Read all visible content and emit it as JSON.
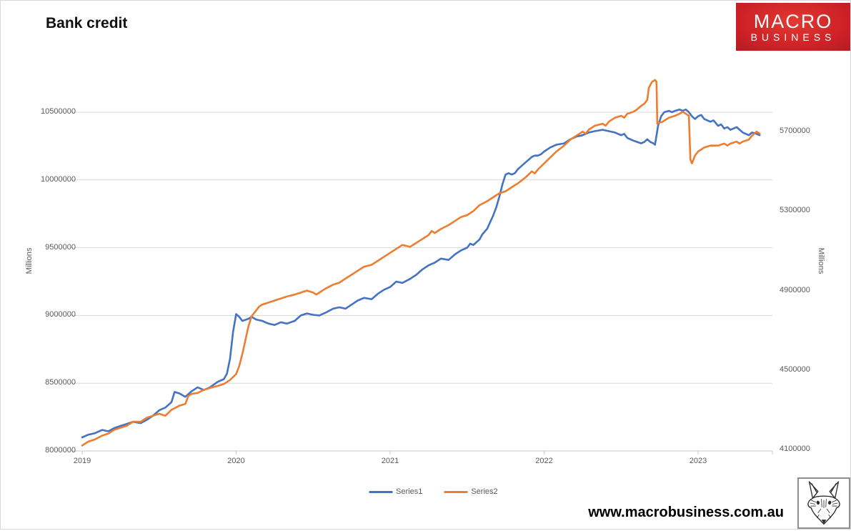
{
  "title": "Bank credit",
  "logo": {
    "line1": "MACRO",
    "line2": "BUSINESS",
    "bg_color": "#cd2127"
  },
  "footer": {
    "website": "www.macrobusiness.com.au"
  },
  "chart_data": {
    "type": "line",
    "title": "Bank credit",
    "grid": true,
    "legend_position": "bottom",
    "x_axis": {
      "tick_labels": [
        "2019",
        "2020",
        "2021",
        "2022",
        "2023"
      ]
    },
    "left_axis": {
      "label": "Millions",
      "min": 8000000,
      "max": 10500000,
      "ticks": [
        8000000,
        8500000,
        9000000,
        9500000,
        10000000,
        10500000
      ]
    },
    "right_axis": {
      "label": "Millions",
      "min": 4100000,
      "max": 5700000,
      "ticks": [
        4100000,
        4500000,
        4900000,
        5300000,
        5700000
      ]
    },
    "legend": [
      {
        "label": "Series1",
        "color": "#4472C4"
      },
      {
        "label": "Series2",
        "color": "#ED7D31"
      }
    ],
    "series": [
      {
        "name": "Series1",
        "axis": "left",
        "color": "#4472C4",
        "points": [
          [
            2019.0,
            8100000
          ],
          [
            2019.04,
            8120000
          ],
          [
            2019.08,
            8130000
          ],
          [
            2019.13,
            8155000
          ],
          [
            2019.17,
            8145000
          ],
          [
            2019.21,
            8170000
          ],
          [
            2019.25,
            8185000
          ],
          [
            2019.29,
            8200000
          ],
          [
            2019.33,
            8215000
          ],
          [
            2019.38,
            8205000
          ],
          [
            2019.42,
            8230000
          ],
          [
            2019.46,
            8260000
          ],
          [
            2019.5,
            8300000
          ],
          [
            2019.54,
            8320000
          ],
          [
            2019.58,
            8360000
          ],
          [
            2019.6,
            8435000
          ],
          [
            2019.63,
            8425000
          ],
          [
            2019.67,
            8400000
          ],
          [
            2019.71,
            8440000
          ],
          [
            2019.75,
            8470000
          ],
          [
            2019.79,
            8450000
          ],
          [
            2019.83,
            8470000
          ],
          [
            2019.88,
            8510000
          ],
          [
            2019.92,
            8530000
          ],
          [
            2019.94,
            8570000
          ],
          [
            2019.96,
            8680000
          ],
          [
            2019.98,
            8880000
          ],
          [
            2020.0,
            9010000
          ],
          [
            2020.02,
            8990000
          ],
          [
            2020.04,
            8960000
          ],
          [
            2020.08,
            8975000
          ],
          [
            2020.1,
            8990000
          ],
          [
            2020.13,
            8970000
          ],
          [
            2020.17,
            8960000
          ],
          [
            2020.21,
            8940000
          ],
          [
            2020.25,
            8930000
          ],
          [
            2020.29,
            8950000
          ],
          [
            2020.33,
            8940000
          ],
          [
            2020.38,
            8960000
          ],
          [
            2020.42,
            9000000
          ],
          [
            2020.46,
            9015000
          ],
          [
            2020.5,
            9005000
          ],
          [
            2020.54,
            9000000
          ],
          [
            2020.58,
            9020000
          ],
          [
            2020.63,
            9050000
          ],
          [
            2020.67,
            9060000
          ],
          [
            2020.71,
            9050000
          ],
          [
            2020.75,
            9080000
          ],
          [
            2020.79,
            9110000
          ],
          [
            2020.83,
            9130000
          ],
          [
            2020.88,
            9120000
          ],
          [
            2020.92,
            9160000
          ],
          [
            2020.96,
            9190000
          ],
          [
            2021.0,
            9210000
          ],
          [
            2021.04,
            9250000
          ],
          [
            2021.08,
            9240000
          ],
          [
            2021.13,
            9270000
          ],
          [
            2021.17,
            9300000
          ],
          [
            2021.21,
            9340000
          ],
          [
            2021.25,
            9370000
          ],
          [
            2021.29,
            9390000
          ],
          [
            2021.33,
            9420000
          ],
          [
            2021.38,
            9410000
          ],
          [
            2021.42,
            9450000
          ],
          [
            2021.46,
            9480000
          ],
          [
            2021.5,
            9500000
          ],
          [
            2021.52,
            9530000
          ],
          [
            2021.54,
            9520000
          ],
          [
            2021.58,
            9560000
          ],
          [
            2021.6,
            9600000
          ],
          [
            2021.63,
            9640000
          ],
          [
            2021.65,
            9690000
          ],
          [
            2021.67,
            9740000
          ],
          [
            2021.69,
            9800000
          ],
          [
            2021.71,
            9880000
          ],
          [
            2021.73,
            9970000
          ],
          [
            2021.75,
            10040000
          ],
          [
            2021.77,
            10050000
          ],
          [
            2021.79,
            10040000
          ],
          [
            2021.81,
            10050000
          ],
          [
            2021.83,
            10080000
          ],
          [
            2021.85,
            10100000
          ],
          [
            2021.88,
            10130000
          ],
          [
            2021.9,
            10150000
          ],
          [
            2021.92,
            10170000
          ],
          [
            2021.94,
            10180000
          ],
          [
            2021.96,
            10180000
          ],
          [
            2021.98,
            10190000
          ],
          [
            2022.0,
            10210000
          ],
          [
            2022.04,
            10240000
          ],
          [
            2022.08,
            10260000
          ],
          [
            2022.13,
            10270000
          ],
          [
            2022.17,
            10300000
          ],
          [
            2022.21,
            10320000
          ],
          [
            2022.25,
            10330000
          ],
          [
            2022.29,
            10350000
          ],
          [
            2022.33,
            10360000
          ],
          [
            2022.38,
            10370000
          ],
          [
            2022.42,
            10360000
          ],
          [
            2022.46,
            10350000
          ],
          [
            2022.5,
            10330000
          ],
          [
            2022.52,
            10340000
          ],
          [
            2022.54,
            10310000
          ],
          [
            2022.58,
            10290000
          ],
          [
            2022.63,
            10270000
          ],
          [
            2022.65,
            10280000
          ],
          [
            2022.67,
            10300000
          ],
          [
            2022.69,
            10280000
          ],
          [
            2022.71,
            10270000
          ],
          [
            2022.72,
            10260000
          ],
          [
            2022.74,
            10400000
          ],
          [
            2022.76,
            10470000
          ],
          [
            2022.78,
            10500000
          ],
          [
            2022.81,
            10510000
          ],
          [
            2022.83,
            10500000
          ],
          [
            2022.85,
            10510000
          ],
          [
            2022.88,
            10520000
          ],
          [
            2022.9,
            10510000
          ],
          [
            2022.92,
            10520000
          ],
          [
            2022.94,
            10500000
          ],
          [
            2022.96,
            10470000
          ],
          [
            2022.98,
            10450000
          ],
          [
            2023.0,
            10470000
          ],
          [
            2023.02,
            10480000
          ],
          [
            2023.04,
            10450000
          ],
          [
            2023.08,
            10430000
          ],
          [
            2023.1,
            10440000
          ],
          [
            2023.13,
            10400000
          ],
          [
            2023.15,
            10410000
          ],
          [
            2023.17,
            10380000
          ],
          [
            2023.19,
            10390000
          ],
          [
            2023.21,
            10370000
          ],
          [
            2023.25,
            10390000
          ],
          [
            2023.29,
            10350000
          ],
          [
            2023.33,
            10330000
          ],
          [
            2023.35,
            10350000
          ],
          [
            2023.38,
            10340000
          ],
          [
            2023.4,
            10330000
          ]
        ]
      },
      {
        "name": "Series2",
        "axis": "right",
        "color": "#ED7D31",
        "points": [
          [
            2019.0,
            4120000
          ],
          [
            2019.04,
            4140000
          ],
          [
            2019.08,
            4150000
          ],
          [
            2019.13,
            4170000
          ],
          [
            2019.17,
            4180000
          ],
          [
            2019.21,
            4200000
          ],
          [
            2019.25,
            4210000
          ],
          [
            2019.29,
            4220000
          ],
          [
            2019.33,
            4240000
          ],
          [
            2019.38,
            4240000
          ],
          [
            2019.42,
            4260000
          ],
          [
            2019.46,
            4270000
          ],
          [
            2019.5,
            4280000
          ],
          [
            2019.54,
            4270000
          ],
          [
            2019.58,
            4300000
          ],
          [
            2019.63,
            4320000
          ],
          [
            2019.67,
            4330000
          ],
          [
            2019.69,
            4370000
          ],
          [
            2019.71,
            4380000
          ],
          [
            2019.75,
            4385000
          ],
          [
            2019.79,
            4400000
          ],
          [
            2019.83,
            4410000
          ],
          [
            2019.88,
            4420000
          ],
          [
            2019.92,
            4430000
          ],
          [
            2019.96,
            4450000
          ],
          [
            2020.0,
            4480000
          ],
          [
            2020.02,
            4520000
          ],
          [
            2020.04,
            4580000
          ],
          [
            2020.06,
            4650000
          ],
          [
            2020.08,
            4720000
          ],
          [
            2020.1,
            4770000
          ],
          [
            2020.13,
            4800000
          ],
          [
            2020.15,
            4820000
          ],
          [
            2020.17,
            4830000
          ],
          [
            2020.21,
            4840000
          ],
          [
            2020.25,
            4850000
          ],
          [
            2020.29,
            4860000
          ],
          [
            2020.33,
            4870000
          ],
          [
            2020.38,
            4880000
          ],
          [
            2020.42,
            4890000
          ],
          [
            2020.46,
            4900000
          ],
          [
            2020.5,
            4890000
          ],
          [
            2020.52,
            4880000
          ],
          [
            2020.54,
            4890000
          ],
          [
            2020.58,
            4910000
          ],
          [
            2020.63,
            4930000
          ],
          [
            2020.67,
            4940000
          ],
          [
            2020.71,
            4960000
          ],
          [
            2020.75,
            4980000
          ],
          [
            2020.79,
            5000000
          ],
          [
            2020.83,
            5020000
          ],
          [
            2020.88,
            5030000
          ],
          [
            2020.92,
            5050000
          ],
          [
            2020.96,
            5070000
          ],
          [
            2021.0,
            5090000
          ],
          [
            2021.04,
            5110000
          ],
          [
            2021.08,
            5130000
          ],
          [
            2021.13,
            5120000
          ],
          [
            2021.17,
            5140000
          ],
          [
            2021.21,
            5160000
          ],
          [
            2021.25,
            5180000
          ],
          [
            2021.27,
            5200000
          ],
          [
            2021.29,
            5190000
          ],
          [
            2021.33,
            5210000
          ],
          [
            2021.38,
            5230000
          ],
          [
            2021.42,
            5250000
          ],
          [
            2021.46,
            5270000
          ],
          [
            2021.5,
            5280000
          ],
          [
            2021.54,
            5300000
          ],
          [
            2021.58,
            5330000
          ],
          [
            2021.63,
            5350000
          ],
          [
            2021.67,
            5370000
          ],
          [
            2021.71,
            5390000
          ],
          [
            2021.75,
            5400000
          ],
          [
            2021.79,
            5420000
          ],
          [
            2021.83,
            5440000
          ],
          [
            2021.88,
            5470000
          ],
          [
            2021.92,
            5500000
          ],
          [
            2021.94,
            5490000
          ],
          [
            2021.96,
            5510000
          ],
          [
            2022.0,
            5540000
          ],
          [
            2022.04,
            5570000
          ],
          [
            2022.08,
            5600000
          ],
          [
            2022.13,
            5630000
          ],
          [
            2022.17,
            5660000
          ],
          [
            2022.21,
            5680000
          ],
          [
            2022.25,
            5700000
          ],
          [
            2022.27,
            5690000
          ],
          [
            2022.29,
            5710000
          ],
          [
            2022.33,
            5730000
          ],
          [
            2022.38,
            5740000
          ],
          [
            2022.4,
            5730000
          ],
          [
            2022.42,
            5750000
          ],
          [
            2022.46,
            5770000
          ],
          [
            2022.5,
            5780000
          ],
          [
            2022.52,
            5770000
          ],
          [
            2022.54,
            5790000
          ],
          [
            2022.58,
            5800000
          ],
          [
            2022.6,
            5810000
          ],
          [
            2022.63,
            5830000
          ],
          [
            2022.65,
            5840000
          ],
          [
            2022.67,
            5860000
          ],
          [
            2022.68,
            5920000
          ],
          [
            2022.7,
            5950000
          ],
          [
            2022.72,
            5960000
          ],
          [
            2022.73,
            5950000
          ],
          [
            2022.735,
            5740000
          ],
          [
            2022.75,
            5745000
          ],
          [
            2022.77,
            5750000
          ],
          [
            2022.79,
            5760000
          ],
          [
            2022.81,
            5770000
          ],
          [
            2022.83,
            5775000
          ],
          [
            2022.85,
            5780000
          ],
          [
            2022.88,
            5790000
          ],
          [
            2022.9,
            5800000
          ],
          [
            2022.92,
            5790000
          ],
          [
            2022.94,
            5780000
          ],
          [
            2022.95,
            5560000
          ],
          [
            2022.96,
            5540000
          ],
          [
            2022.98,
            5580000
          ],
          [
            2023.0,
            5600000
          ],
          [
            2023.02,
            5610000
          ],
          [
            2023.04,
            5620000
          ],
          [
            2023.08,
            5630000
          ],
          [
            2023.13,
            5630000
          ],
          [
            2023.17,
            5640000
          ],
          [
            2023.19,
            5630000
          ],
          [
            2023.21,
            5640000
          ],
          [
            2023.25,
            5650000
          ],
          [
            2023.27,
            5640000
          ],
          [
            2023.29,
            5650000
          ],
          [
            2023.33,
            5660000
          ],
          [
            2023.35,
            5680000
          ],
          [
            2023.38,
            5700000
          ],
          [
            2023.4,
            5690000
          ]
        ]
      }
    ]
  }
}
